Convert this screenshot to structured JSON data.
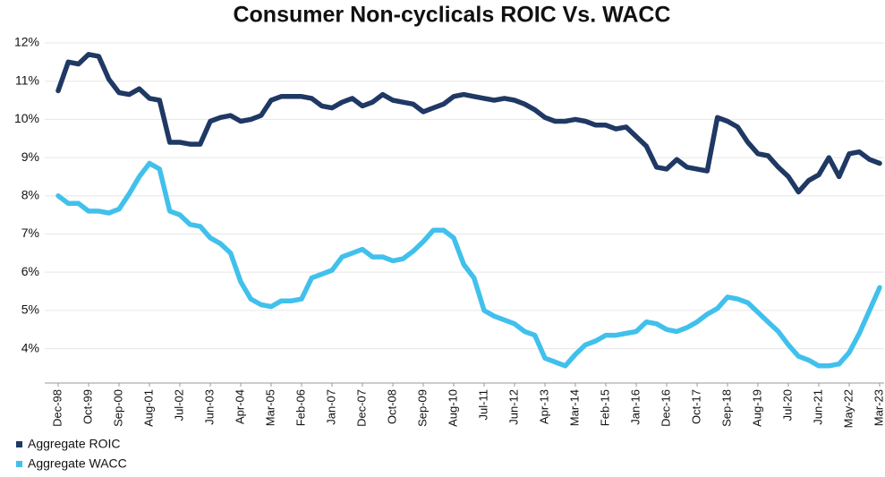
{
  "chart_data": {
    "type": "line",
    "title": "Consumer Non-cyclicals ROIC Vs. WACC",
    "categories": [
      "Dec-98",
      null,
      null,
      "Oct-99",
      null,
      null,
      "Sep-00",
      null,
      null,
      "Aug-01",
      null,
      null,
      "Jul-02",
      null,
      null,
      "Jun-03",
      null,
      null,
      "Apr-04",
      null,
      null,
      "Mar-05",
      null,
      null,
      "Feb-06",
      null,
      null,
      "Jan-07",
      null,
      null,
      "Dec-07",
      null,
      null,
      "Oct-08",
      null,
      null,
      "Sep-09",
      null,
      null,
      "Aug-10",
      null,
      null,
      "Jul-11",
      null,
      null,
      "Jun-12",
      null,
      null,
      "Apr-13",
      null,
      null,
      "Mar-14",
      null,
      null,
      "Feb-15",
      null,
      null,
      "Jan-16",
      null,
      null,
      "Dec-16",
      null,
      null,
      "Oct-17",
      null,
      null,
      "Sep-18",
      null,
      null,
      "Aug-19",
      null,
      null,
      "Jul-20",
      null,
      null,
      "Jun-21",
      null,
      null,
      "May-22",
      null,
      null,
      "Mar-23"
    ],
    "series": [
      {
        "name": "Aggregate ROIC",
        "color": "#1f3864",
        "values": [
          10.75,
          11.5,
          11.45,
          11.7,
          11.65,
          11.05,
          10.7,
          10.65,
          10.8,
          10.55,
          10.5,
          9.4,
          9.4,
          9.35,
          9.35,
          9.95,
          10.05,
          10.1,
          9.95,
          10.0,
          10.1,
          10.5,
          10.6,
          10.6,
          10.6,
          10.55,
          10.35,
          10.3,
          10.45,
          10.55,
          10.35,
          10.45,
          10.65,
          10.5,
          10.45,
          10.4,
          10.2,
          10.3,
          10.4,
          10.6,
          10.65,
          10.6,
          10.55,
          10.5,
          10.55,
          10.5,
          10.4,
          10.25,
          10.05,
          9.95,
          9.95,
          10.0,
          9.95,
          9.85,
          9.85,
          9.75,
          9.8,
          9.55,
          9.3,
          8.75,
          8.7,
          8.95,
          8.75,
          8.7,
          8.65,
          10.05,
          9.95,
          9.8,
          9.4,
          9.1,
          9.05,
          8.75,
          8.5,
          8.1,
          8.4,
          8.55,
          9.0,
          8.5,
          9.1,
          9.15,
          8.95,
          8.85
        ]
      },
      {
        "name": "Aggregate WACC",
        "color": "#41c0ec",
        "values": [
          8.0,
          7.8,
          7.8,
          7.6,
          7.6,
          7.55,
          7.65,
          8.05,
          8.5,
          8.85,
          8.7,
          7.6,
          7.5,
          7.25,
          7.2,
          6.9,
          6.75,
          6.5,
          5.75,
          5.3,
          5.15,
          5.1,
          5.25,
          5.25,
          5.3,
          5.85,
          5.95,
          6.05,
          6.4,
          6.5,
          6.6,
          6.4,
          6.4,
          6.3,
          6.35,
          6.55,
          6.8,
          7.1,
          7.1,
          6.9,
          6.2,
          5.85,
          5.0,
          4.85,
          4.75,
          4.65,
          4.45,
          4.35,
          3.75,
          3.65,
          3.55,
          3.85,
          4.1,
          4.2,
          4.35,
          4.35,
          4.4,
          4.45,
          4.7,
          4.65,
          4.5,
          4.45,
          4.55,
          4.7,
          4.9,
          5.05,
          5.35,
          5.3,
          5.2,
          4.95,
          4.7,
          4.45,
          4.1,
          3.8,
          3.7,
          3.55,
          3.55,
          3.6,
          3.9,
          4.4,
          5.0,
          5.6
        ]
      }
    ],
    "ylim": [
      3.1,
      12
    ],
    "yticks": [
      {
        "value": 4,
        "label": "4%"
      },
      {
        "value": 5,
        "label": "5%"
      },
      {
        "value": 6,
        "label": "6%"
      },
      {
        "value": 7,
        "label": "7%"
      },
      {
        "value": 8,
        "label": "8%"
      },
      {
        "value": 9,
        "label": "9%"
      },
      {
        "value": 10,
        "label": "10%"
      },
      {
        "value": 11,
        "label": "11%"
      },
      {
        "value": 12,
        "label": "12%"
      }
    ],
    "grid": true,
    "legend": "bottom-left"
  }
}
